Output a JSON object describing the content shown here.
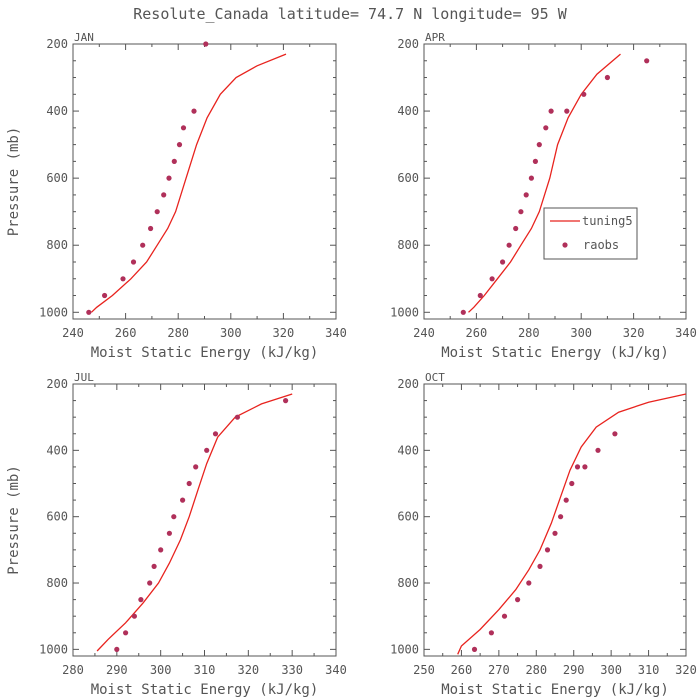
{
  "title": "Resolute_Canada  latitude= 74.7 N longitude= 95 W",
  "colors": {
    "model": "#e8231e",
    "obs": "#b0305a",
    "axis": "#555555"
  },
  "legend": {
    "model": "tuning5",
    "obs": "raobs"
  },
  "chart_data": [
    {
      "type": "line",
      "panel": "JAN",
      "xlabel": "Moist Static Energy (kJ/kg)",
      "ylabel": "Pressure (mb)",
      "xlim": [
        240,
        340
      ],
      "ylim": [
        1020,
        200
      ],
      "xticks": [
        240,
        260,
        280,
        300,
        320,
        340
      ],
      "yticks": [
        200,
        400,
        600,
        800,
        1000
      ],
      "xtick_labels": [
        "240",
        "260",
        "280",
        "300",
        "320",
        "340"
      ],
      "ytick_labels": [
        "200",
        "400",
        "600",
        "800",
        "1000"
      ],
      "series": [
        {
          "name": "tuning5",
          "style": "line",
          "x": [
            247,
            249,
            255,
            262,
            268,
            272,
            276,
            279,
            283,
            287,
            291,
            296,
            302,
            310,
            321
          ],
          "y": [
            1000,
            985,
            950,
            900,
            850,
            800,
            750,
            700,
            600,
            500,
            420,
            350,
            300,
            265,
            230
          ]
        },
        {
          "name": "raobs",
          "style": "markers",
          "x": [
            246,
            252,
            259,
            263,
            266.5,
            269.5,
            272,
            274.5,
            276.5,
            278.5,
            280.5,
            282,
            286,
            290.5
          ],
          "y": [
            1000,
            950,
            900,
            850,
            800,
            750,
            700,
            650,
            600,
            550,
            500,
            450,
            400,
            200
          ]
        }
      ]
    },
    {
      "type": "line",
      "panel": "APR",
      "xlabel": "Moist Static Energy (kJ/kg)",
      "ylabel": "",
      "xlim": [
        240,
        340
      ],
      "ylim": [
        1020,
        200
      ],
      "xticks": [
        240,
        260,
        280,
        300,
        320,
        340
      ],
      "yticks": [
        200,
        400,
        600,
        800,
        1000
      ],
      "xtick_labels": [
        "240",
        "260",
        "280",
        "300",
        "320",
        "340"
      ],
      "ytick_labels": [
        "200",
        "400",
        "600",
        "800",
        "1000"
      ],
      "legend": true,
      "series": [
        {
          "name": "tuning5",
          "style": "line",
          "x": [
            257,
            259,
            263,
            268,
            273,
            277,
            281,
            284,
            288,
            291,
            295,
            300,
            306,
            315
          ],
          "y": [
            1000,
            985,
            950,
            900,
            850,
            800,
            750,
            700,
            600,
            500,
            420,
            350,
            290,
            230
          ]
        },
        {
          "name": "raobs",
          "style": "markers",
          "x": [
            255,
            261.5,
            266,
            270,
            272.5,
            275,
            277,
            279,
            281,
            282.5,
            284,
            286.5,
            288.5,
            294.5,
            301,
            310,
            325
          ],
          "y": [
            1000,
            950,
            900,
            850,
            800,
            750,
            700,
            650,
            600,
            550,
            500,
            450,
            400,
            400,
            350,
            300,
            250
          ]
        }
      ]
    },
    {
      "type": "line",
      "panel": "JUL",
      "xlabel": "Moist Static Energy (kJ/kg)",
      "ylabel": "Pressure (mb)",
      "xlim": [
        280,
        340
      ],
      "ylim": [
        1020,
        200
      ],
      "xticks": [
        280,
        290,
        300,
        310,
        320,
        330,
        340
      ],
      "yticks": [
        200,
        400,
        600,
        800,
        1000
      ],
      "xtick_labels": [
        "280",
        "290",
        "300",
        "310",
        "320",
        "330",
        "340"
      ],
      "ytick_labels": [
        "200",
        "400",
        "600",
        "800",
        "1000"
      ],
      "series": [
        {
          "name": "tuning5",
          "style": "line",
          "x": [
            285.5,
            288,
            292,
            296,
            299.5,
            302,
            304.5,
            306.5,
            308.5,
            310.5,
            313,
            317,
            323,
            330
          ],
          "y": [
            1005,
            970,
            920,
            860,
            800,
            740,
            670,
            600,
            520,
            440,
            360,
            300,
            260,
            230
          ]
        },
        {
          "name": "raobs",
          "style": "markers",
          "x": [
            290,
            292,
            294,
            295.5,
            297.5,
            298.5,
            300,
            302,
            303,
            305,
            306.5,
            308,
            310.5,
            312.5,
            317.5,
            328.5
          ],
          "y": [
            1000,
            950,
            900,
            850,
            800,
            750,
            700,
            650,
            600,
            550,
            500,
            450,
            400,
            350,
            300,
            250
          ]
        }
      ]
    },
    {
      "type": "line",
      "panel": "OCT",
      "xlabel": "Moist Static Energy (kJ/kg)",
      "ylabel": "",
      "xlim": [
        250,
        320
      ],
      "ylim": [
        1020,
        200
      ],
      "xticks": [
        250,
        260,
        270,
        280,
        290,
        300,
        310,
        320
      ],
      "yticks": [
        200,
        400,
        600,
        800,
        1000
      ],
      "xtick_labels": [
        "250",
        "260",
        "270",
        "280",
        "290",
        "300",
        "310",
        "320"
      ],
      "ytick_labels": [
        "200",
        "400",
        "600",
        "800",
        "1000"
      ],
      "series": [
        {
          "name": "tuning5",
          "style": "line",
          "x": [
            259,
            260,
            265,
            270,
            274.5,
            278,
            281,
            284,
            286.5,
            289,
            292,
            296,
            302,
            310,
            320
          ],
          "y": [
            1015,
            990,
            940,
            880,
            820,
            760,
            700,
            620,
            540,
            460,
            390,
            330,
            285,
            255,
            230
          ]
        },
        {
          "name": "raobs",
          "style": "markers",
          "x": [
            263.5,
            268,
            271.5,
            275,
            278,
            281,
            283,
            285,
            286.5,
            288,
            289.5,
            291,
            293,
            296.5,
            301
          ],
          "y": [
            1000,
            950,
            900,
            850,
            800,
            750,
            700,
            650,
            600,
            550,
            500,
            450,
            450,
            400,
            350
          ]
        }
      ]
    }
  ]
}
